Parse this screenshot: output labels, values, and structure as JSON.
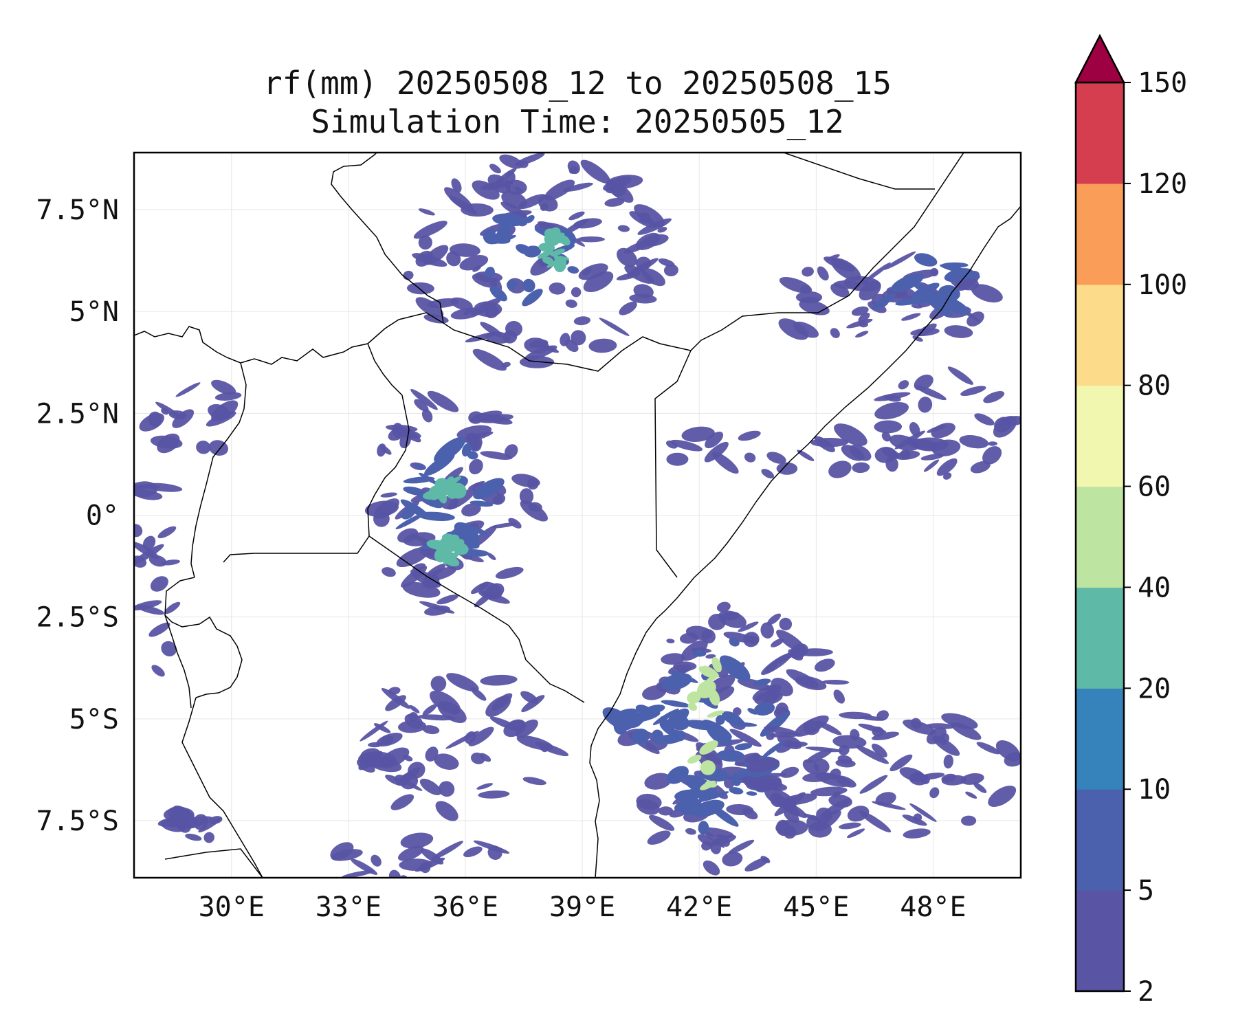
{
  "title": {
    "line1": "rf(mm) 20250508_12 to 20250508_15",
    "line2": "Simulation Time: 20250505_12"
  },
  "map": {
    "lon_range": [
      27.5,
      50.25
    ],
    "lat_range": [
      -8.9,
      8.9
    ],
    "x_ticks": [
      {
        "lon": 30,
        "label": "30°E"
      },
      {
        "lon": 33,
        "label": "33°E"
      },
      {
        "lon": 36,
        "label": "36°E"
      },
      {
        "lon": 39,
        "label": "39°E"
      },
      {
        "lon": 42,
        "label": "42°E"
      },
      {
        "lon": 45,
        "label": "45°E"
      },
      {
        "lon": 48,
        "label": "48°E"
      }
    ],
    "y_ticks": [
      {
        "lat": 7.5,
        "label": "7.5°N"
      },
      {
        "lat": 5,
        "label": "5°N"
      },
      {
        "lat": 2.5,
        "label": "2.5°N"
      },
      {
        "lat": 0,
        "label": "0°"
      },
      {
        "lat": -2.5,
        "label": "2.5°S"
      },
      {
        "lat": -5,
        "label": "5°S"
      },
      {
        "lat": -7.5,
        "label": "7.5°S"
      }
    ],
    "gridlines": true,
    "rainfall_regions": [
      {
        "lon": 37.9,
        "lat": 6.2,
        "rx": 3.4,
        "ry": 2.6,
        "level": 0
      },
      {
        "lon": 37.5,
        "lat": 6.2,
        "rx": 1.4,
        "ry": 1.1,
        "level": 1
      },
      {
        "lon": 38.3,
        "lat": 6.5,
        "rx": 0.35,
        "ry": 0.4,
        "level": 3
      },
      {
        "lon": 46.8,
        "lat": 5.2,
        "rx": 2.8,
        "ry": 1.3,
        "level": 0
      },
      {
        "lon": 47.8,
        "lat": 5.5,
        "rx": 1.3,
        "ry": 0.9,
        "level": 1
      },
      {
        "lon": 44.5,
        "lat": 1.6,
        "rx": 3.5,
        "ry": 0.6,
        "level": 0
      },
      {
        "lon": 29.3,
        "lat": 2.3,
        "rx": 1.4,
        "ry": 0.9,
        "level": 0
      },
      {
        "lon": 35.6,
        "lat": 0.2,
        "rx": 2.2,
        "ry": 2.8,
        "level": 0
      },
      {
        "lon": 35.6,
        "lat": 0.3,
        "rx": 1.1,
        "ry": 1.5,
        "level": 1
      },
      {
        "lon": 35.5,
        "lat": 0.6,
        "rx": 0.4,
        "ry": 0.3,
        "level": 3
      },
      {
        "lon": 35.6,
        "lat": -0.8,
        "rx": 0.35,
        "ry": 0.3,
        "level": 3
      },
      {
        "lon": 43.0,
        "lat": -5.6,
        "rx": 2.8,
        "ry": 3.4,
        "level": 0
      },
      {
        "lon": 42.5,
        "lat": -5.4,
        "rx": 1.5,
        "ry": 2.4,
        "level": 1
      },
      {
        "lon": 42.3,
        "lat": -5.0,
        "rx": 0.55,
        "ry": 1.8,
        "level": 4
      },
      {
        "lon": 46.6,
        "lat": -6.3,
        "rx": 3.6,
        "ry": 1.6,
        "level": 0
      },
      {
        "lon": 35.9,
        "lat": -5.6,
        "rx": 2.6,
        "ry": 1.8,
        "level": 0
      },
      {
        "lon": 28.0,
        "lat": -1.4,
        "rx": 0.6,
        "ry": 2.6,
        "level": 0
      },
      {
        "lon": 34.8,
        "lat": -8.4,
        "rx": 2.2,
        "ry": 0.6,
        "level": 0
      },
      {
        "lon": 29.0,
        "lat": -7.6,
        "rx": 0.8,
        "ry": 0.4,
        "level": 0
      },
      {
        "lon": 48.3,
        "lat": 2.2,
        "rx": 1.8,
        "ry": 1.3,
        "level": 0
      },
      {
        "lon": 40.7,
        "lat": -5.1,
        "rx": 0.9,
        "ry": 0.35,
        "level": 1
      }
    ]
  },
  "colorbar": {
    "boundaries": [
      "2",
      "5",
      "10",
      "20",
      "40",
      "60",
      "80",
      "100",
      "120",
      "150"
    ],
    "colors": [
      "#5954a4",
      "#4c61ad",
      "#3682ba",
      "#5ebaa7",
      "#bee4a1",
      "#f2f7b0",
      "#fcdc8a",
      "#f99d59",
      "#d53e4f"
    ],
    "over_color": "#9e0142",
    "extend": "max"
  }
}
